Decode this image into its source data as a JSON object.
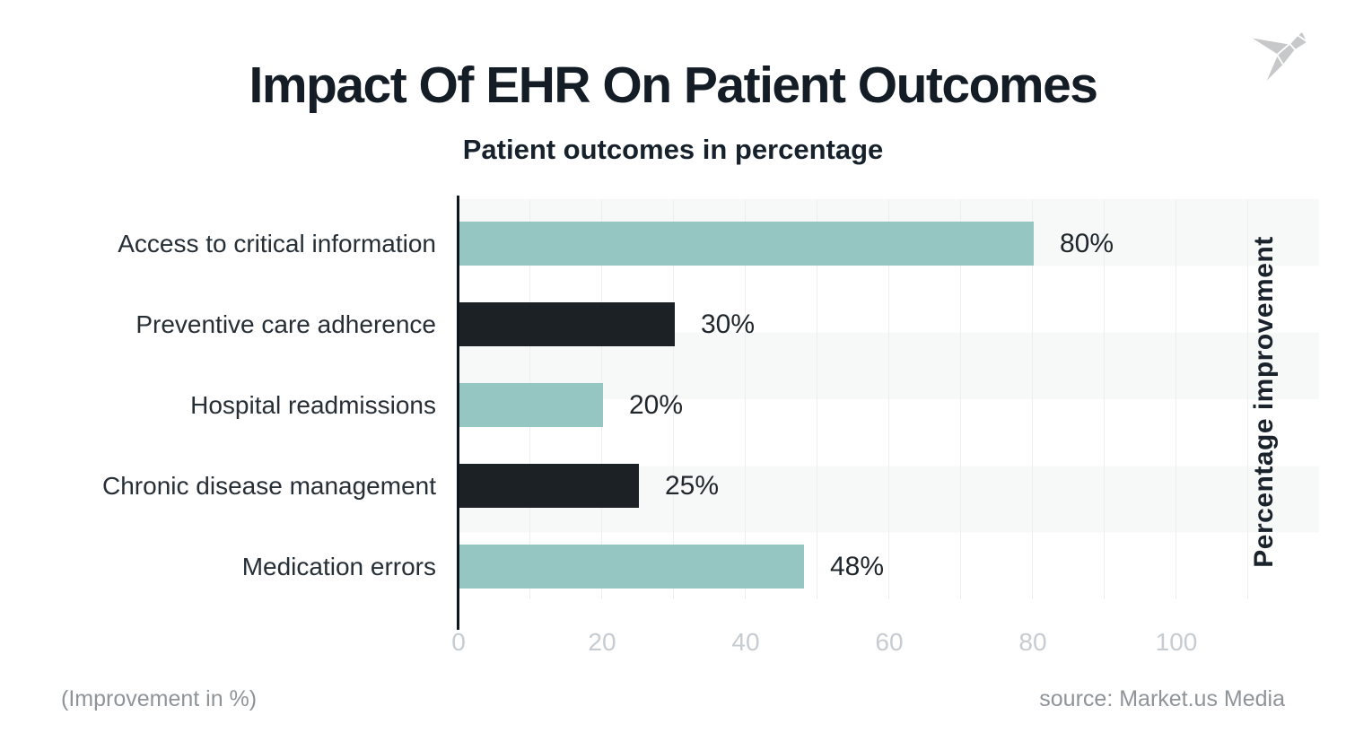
{
  "header": {
    "title": "Impact Of EHR On Patient Outcomes",
    "subtitle": "Patient outcomes in percentage"
  },
  "chart_data": {
    "type": "bar",
    "orientation": "horizontal",
    "title": "Impact Of EHR On Patient Outcomes",
    "subtitle": "Patient outcomes in percentage",
    "categories": [
      "Access to critical information",
      "Preventive care adherence",
      "Hospital readmissions",
      "Chronic disease management",
      "Medication errors"
    ],
    "values": [
      80,
      30,
      20,
      25,
      48
    ],
    "value_labels": [
      "80%",
      "30%",
      "20%",
      "25%",
      "48%"
    ],
    "bar_colors": [
      "teal",
      "dark",
      "teal",
      "dark",
      "teal"
    ],
    "x_ticks": [
      "0",
      "20",
      "40",
      "60",
      "80",
      "100"
    ],
    "x_tick_values": [
      0,
      20,
      40,
      60,
      80,
      100
    ],
    "xlim": [
      0,
      120
    ],
    "xlabel": "",
    "ylabel_right": "Percentage improvement",
    "grid": "vertical gridlines every 10 units",
    "row_bands": "alternating light-gray / white horizontal bands",
    "legend": "none"
  },
  "footer": {
    "left_note": "(Improvement in %)",
    "source": "source: Market.us Media"
  },
  "logo": {
    "name": "origami-bird-logo"
  },
  "colors": {
    "teal": "#95c6c1",
    "dark": "#1b2124",
    "ink": "#141d26",
    "stripe": "#f7f8f8",
    "grid": "#eceeef",
    "axis_line": "#0e171d",
    "tick_text": "#c6ccd1",
    "muted_text": "#8f9499",
    "logo": "#c7c8c9"
  }
}
